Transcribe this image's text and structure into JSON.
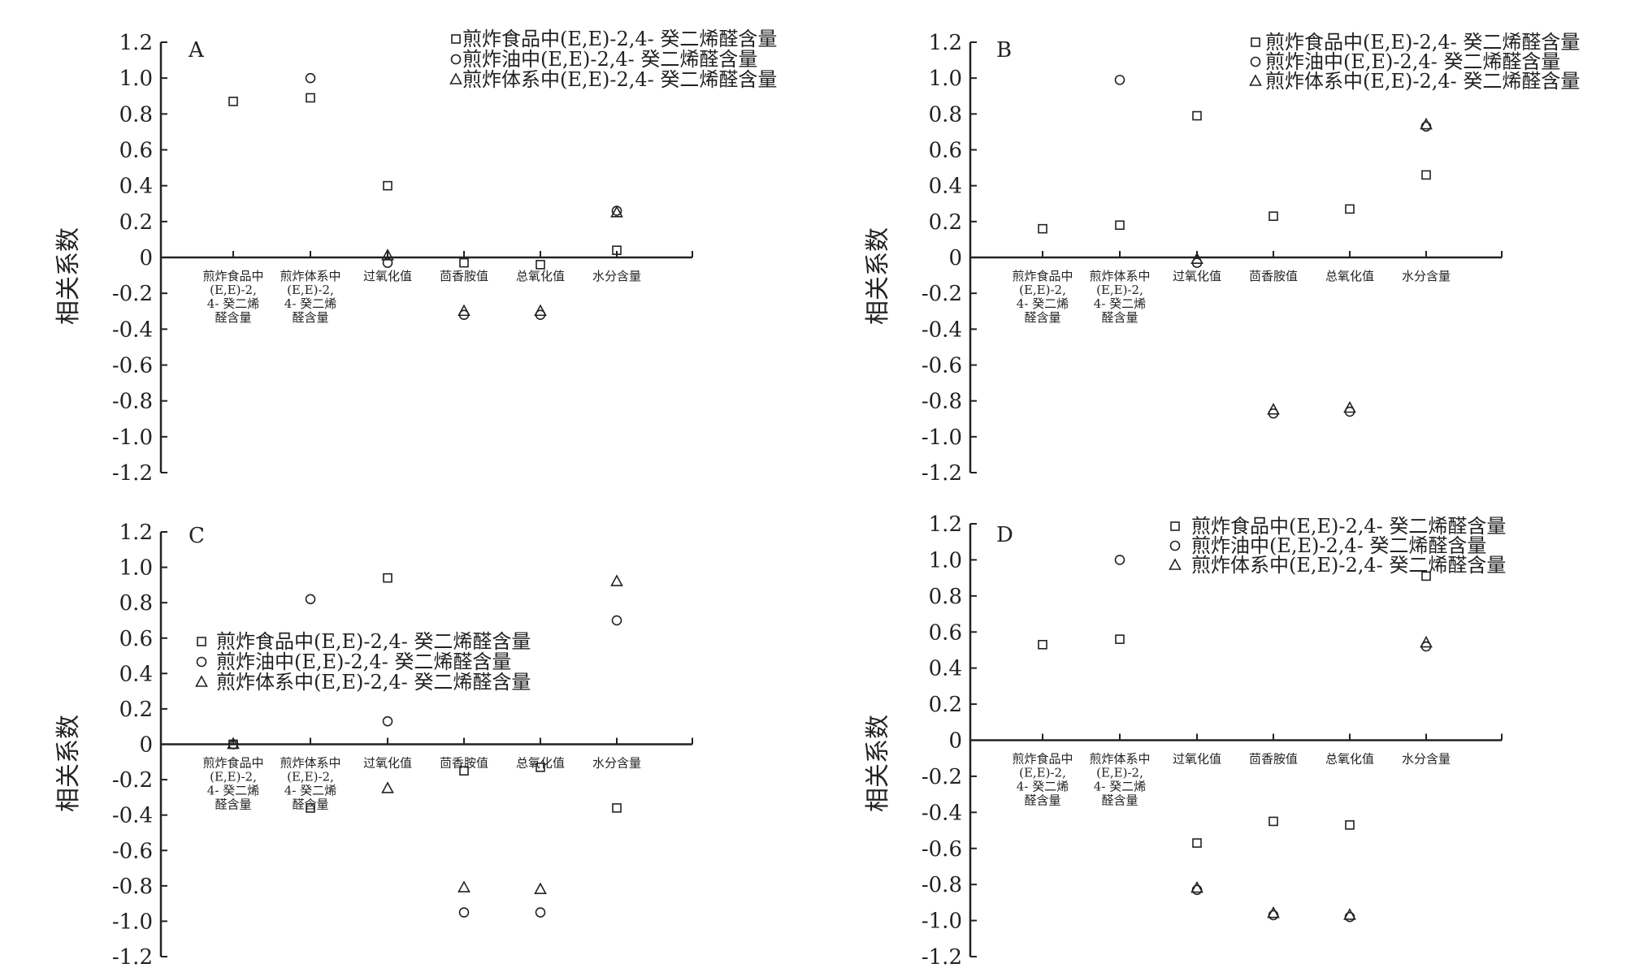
{
  "shared": {
    "ylabel": "相关系数",
    "y_ticks": [
      "1.2",
      "1.0",
      "0.8",
      "0.6",
      "0.4",
      "0.2",
      "0",
      "-0.2",
      "-0.4",
      "-0.6",
      "-0.8",
      "-1.0",
      "-1.2"
    ],
    "legend": [
      {
        "label": "煎炸食品中(E,E)-2,4- 癸二烯醛含量",
        "marker": "square"
      },
      {
        "label": "煎炸油中(E,E)-2,4- 癸二烯醛含量",
        "marker": "circle"
      },
      {
        "label": "煎炸体系中(E,E)-2,4- 癸二烯醛含量",
        "marker": "triangle"
      }
    ],
    "category_labels": [
      [
        "煎炸食品中",
        "(E,E)-2,",
        "4- 癸二烯",
        "醛含量"
      ],
      [
        "煎炸体系中",
        "(E,E)-2,",
        "4- 癸二烯",
        "醛含量"
      ],
      [
        "过氧化值"
      ],
      [
        "茴香胺值"
      ],
      [
        "总氧化值"
      ],
      [
        "水分含量"
      ]
    ]
  },
  "chart_data": [
    {
      "type": "scatter",
      "panel_label": "A",
      "ylim": [
        -1.2,
        1.2
      ],
      "grid": false,
      "legend_position": "top-right",
      "categories": [
        "煎炸食品中(E,E)-2,4-癸二烯醛含量",
        "煎炸体系中(E,E)-2,4-癸二烯醛含量",
        "过氧化值",
        "茴香胺值",
        "总氧化值",
        "水分含量"
      ],
      "series": [
        {
          "marker": "square",
          "values": [
            0.87,
            0.89,
            0.4,
            -0.03,
            -0.04,
            0.04
          ]
        },
        {
          "marker": "circle",
          "values": [
            null,
            1.0,
            -0.03,
            -0.32,
            -0.32,
            0.26
          ]
        },
        {
          "marker": "triangle",
          "values": [
            null,
            null,
            0.01,
            -0.3,
            -0.3,
            0.25
          ]
        }
      ]
    },
    {
      "type": "scatter",
      "panel_label": "B",
      "ylim": [
        -1.2,
        1.2
      ],
      "grid": false,
      "legend_position": "top-right",
      "categories": [
        "煎炸食品中(E,E)-2,4-癸二烯醛含量",
        "煎炸体系中(E,E)-2,4-癸二烯醛含量",
        "过氧化值",
        "茴香胺值",
        "总氧化值",
        "水分含量"
      ],
      "series": [
        {
          "marker": "square",
          "values": [
            0.16,
            0.18,
            0.79,
            0.23,
            0.27,
            0.46
          ]
        },
        {
          "marker": "circle",
          "values": [
            null,
            0.99,
            -0.03,
            -0.87,
            -0.86,
            0.73
          ]
        },
        {
          "marker": "triangle",
          "values": [
            null,
            null,
            -0.01,
            -0.85,
            -0.84,
            0.74
          ]
        }
      ]
    },
    {
      "type": "scatter",
      "panel_label": "C",
      "ylim": [
        -1.2,
        1.2
      ],
      "grid": false,
      "legend_position": "middle-left",
      "categories": [
        "煎炸食品中(E,E)-2,4-癸二烯醛含量",
        "煎炸体系中(E,E)-2,4-癸二烯醛含量",
        "过氧化值",
        "茴香胺值",
        "总氧化值",
        "水分含量"
      ],
      "series": [
        {
          "marker": "square",
          "values": [
            0.0,
            -0.36,
            0.94,
            -0.15,
            -0.13,
            -0.36
          ]
        },
        {
          "marker": "circle",
          "values": [
            0.0,
            0.82,
            0.13,
            -0.95,
            -0.95,
            0.7
          ]
        },
        {
          "marker": "triangle",
          "values": [
            0.0,
            null,
            -0.25,
            -0.81,
            -0.82,
            0.92
          ]
        }
      ]
    },
    {
      "type": "scatter",
      "panel_label": "D",
      "ylim": [
        -1.2,
        1.2
      ],
      "grid": false,
      "legend_position": "top-right",
      "categories": [
        "煎炸食品中(E,E)-2,4-癸二烯醛含量",
        "煎炸体系中(E,E)-2,4-癸二烯醛含量",
        "过氧化值",
        "茴香胺值",
        "总氧化值",
        "水分含量"
      ],
      "series": [
        {
          "marker": "square",
          "values": [
            0.53,
            0.56,
            -0.57,
            -0.45,
            -0.47,
            0.91
          ]
        },
        {
          "marker": "circle",
          "values": [
            null,
            1.0,
            -0.83,
            -0.97,
            -0.98,
            0.52
          ]
        },
        {
          "marker": "triangle",
          "values": [
            null,
            null,
            -0.82,
            -0.96,
            -0.97,
            0.54
          ]
        }
      ]
    }
  ]
}
